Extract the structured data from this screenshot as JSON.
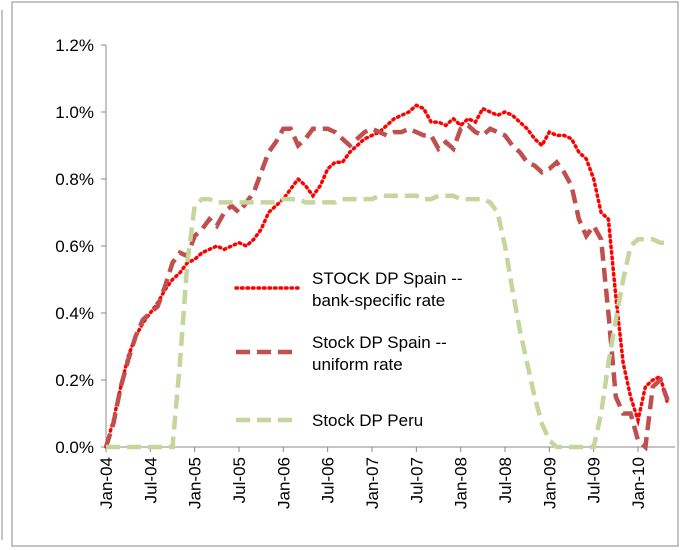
{
  "chart_data": {
    "type": "line",
    "categories": [
      "Jan-04",
      null,
      null,
      null,
      null,
      null,
      "Jul-04",
      null,
      null,
      null,
      null,
      null,
      "Jan-05",
      null,
      null,
      null,
      null,
      null,
      "Jul-05",
      null,
      null,
      null,
      null,
      null,
      "Jan-06",
      null,
      null,
      null,
      null,
      null,
      "Jul-06",
      null,
      null,
      null,
      null,
      null,
      "Jan-07",
      null,
      null,
      null,
      null,
      null,
      "Jul-07",
      null,
      null,
      null,
      null,
      null,
      "Jan-08",
      null,
      null,
      null,
      null,
      null,
      "Jul-08",
      null,
      null,
      null,
      null,
      null,
      "Jan-09",
      null,
      null,
      null,
      null,
      null,
      "Jul-09",
      null,
      null,
      null,
      null,
      null,
      "Jan-10",
      null,
      null,
      null,
      null
    ],
    "series": [
      {
        "name": "STOCK DP Spain -- bank-specific rate",
        "color": "#ff0000",
        "dash": "dotted",
        "values": [
          0,
          0.08,
          0.18,
          0.27,
          0.33,
          0.37,
          0.4,
          0.43,
          0.47,
          0.5,
          0.52,
          0.55,
          0.56,
          0.58,
          0.59,
          0.6,
          0.59,
          0.6,
          0.61,
          0.6,
          0.62,
          0.65,
          0.7,
          0.72,
          0.74,
          0.77,
          0.8,
          0.78,
          0.75,
          0.78,
          0.83,
          0.85,
          0.85,
          0.88,
          0.9,
          0.92,
          0.93,
          0.94,
          0.96,
          0.98,
          0.99,
          1.0,
          1.02,
          1.01,
          0.97,
          0.97,
          0.96,
          0.98,
          0.96,
          0.98,
          0.97,
          1.01,
          1.0,
          0.99,
          1.0,
          0.99,
          0.97,
          0.95,
          0.92,
          0.9,
          0.94,
          0.93,
          0.93,
          0.92,
          0.88,
          0.86,
          0.8,
          0.7,
          0.68,
          0.45,
          0.25,
          0.15,
          0.08,
          0.18,
          0.2,
          0.21,
          0.13
        ]
      },
      {
        "name": "Stock DP Spain -- uniform rate",
        "color": "#c0504d",
        "dash": "dashed",
        "values": [
          0,
          0.07,
          0.18,
          0.26,
          0.33,
          0.38,
          0.4,
          0.42,
          0.48,
          0.55,
          0.58,
          0.57,
          0.63,
          0.65,
          0.68,
          0.66,
          0.7,
          0.72,
          0.7,
          0.73,
          0.76,
          0.82,
          0.88,
          0.91,
          0.95,
          0.95,
          0.9,
          0.92,
          0.95,
          0.95,
          0.95,
          0.94,
          0.92,
          0.9,
          0.92,
          0.94,
          0.95,
          0.94,
          0.93,
          0.94,
          0.94,
          0.95,
          0.94,
          0.93,
          0.93,
          0.89,
          0.91,
          0.89,
          0.95,
          0.96,
          0.94,
          0.93,
          0.95,
          0.94,
          0.93,
          0.9,
          0.88,
          0.85,
          0.84,
          0.82,
          0.83,
          0.85,
          0.82,
          0.78,
          0.68,
          0.63,
          0.66,
          0.62,
          0.4,
          0.15,
          0.1,
          0.1,
          0.02,
          0,
          0.18,
          0.2,
          0.14
        ]
      },
      {
        "name": "Stock DP Peru",
        "color": "#c3d69b",
        "dash": "dashed",
        "values": [
          0,
          0,
          0,
          0,
          0,
          0,
          0,
          0,
          0,
          0,
          0.25,
          0.55,
          0.72,
          0.74,
          0.74,
          0.73,
          0.73,
          0.73,
          0.73,
          0.73,
          0.73,
          0.73,
          0.73,
          0.73,
          0.74,
          0.74,
          0.74,
          0.73,
          0.73,
          0.73,
          0.73,
          0.73,
          0.74,
          0.74,
          0.74,
          0.74,
          0.74,
          0.75,
          0.75,
          0.75,
          0.75,
          0.75,
          0.75,
          0.74,
          0.74,
          0.75,
          0.75,
          0.75,
          0.74,
          0.74,
          0.74,
          0.74,
          0.73,
          0.7,
          0.6,
          0.47,
          0.35,
          0.25,
          0.15,
          0.07,
          0.02,
          0,
          0,
          0,
          0,
          0,
          0,
          0.1,
          0.25,
          0.38,
          0.5,
          0.6,
          0.62,
          0.62,
          0.62,
          0.61,
          0.61
        ]
      }
    ],
    "ylim": [
      0,
      1.2
    ],
    "yticks": [
      {
        "value": 0,
        "label": "0.0%"
      },
      {
        "value": 0.2,
        "label": "0.2%"
      },
      {
        "value": 0.4,
        "label": "0.4%"
      },
      {
        "value": 0.6,
        "label": "0.6%"
      },
      {
        "value": 0.8,
        "label": "0.8%"
      },
      {
        "value": 1.0,
        "label": "1.0%"
      },
      {
        "value": 1.2,
        "label": "1.2%"
      }
    ],
    "legend": "center"
  }
}
